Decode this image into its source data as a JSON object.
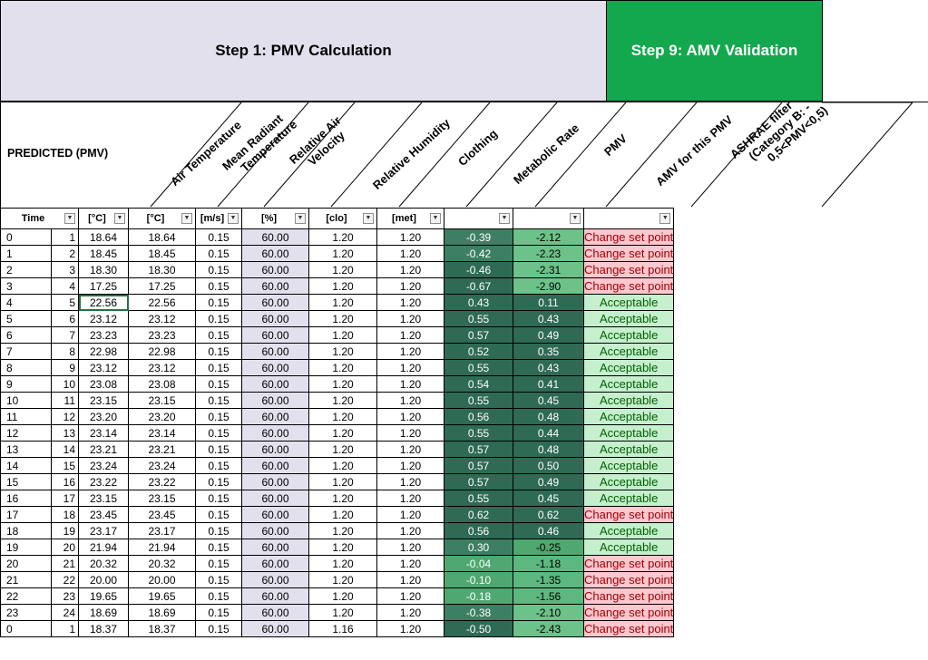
{
  "banners": {
    "step1": "Step 1: PMV Calculation",
    "step9": "Step 9: AMV Validation"
  },
  "header": {
    "predicted_label": "PREDICTED (PMV)",
    "columns": [
      {
        "key": "air_temp",
        "label": [
          "Air Temperature"
        ]
      },
      {
        "key": "mrt",
        "label": [
          "Mean Radiant",
          "Temperature"
        ]
      },
      {
        "key": "air_vel",
        "label": [
          "Relative Air",
          "Velocity"
        ]
      },
      {
        "key": "rh",
        "label": [
          "Relative Humidity"
        ]
      },
      {
        "key": "clo",
        "label": [
          "Clothing"
        ]
      },
      {
        "key": "met",
        "label": [
          "Metabolic Rate"
        ]
      },
      {
        "key": "pmv",
        "label": [
          "PMV"
        ]
      },
      {
        "key": "amv",
        "label": [
          "AMV for this PMV"
        ]
      },
      {
        "key": "ashrae",
        "label": [
          "ASHRAE filter",
          "(Category B: -",
          "0,5<PMV<0,5)"
        ]
      }
    ],
    "filters": {
      "time": "Time",
      "air_temp": "[°C]",
      "mrt": "[°C]",
      "air_vel": "[m/s]",
      "rh": "[%]",
      "clo": "[clo]",
      "met": "[met]",
      "pmv": "",
      "amv": "",
      "ashrae": ""
    },
    "filter_icon": "dropdown-arrow-icon"
  },
  "status_labels": {
    "good": "Acceptable",
    "bad": "Change set point"
  },
  "colors": {
    "banner1": "#e3e0ee",
    "banner2": "#14a84e",
    "acceptable_bg": "#c6efce",
    "acceptable_fg": "#006100",
    "change_bg": "#ffc7ce",
    "change_fg": "#9c0006"
  },
  "rows": [
    {
      "idx": "0",
      "hour": "1",
      "air_temp": "18.64",
      "mrt": "18.64",
      "vel": "0.15",
      "rh": "60.00",
      "clo": "1.20",
      "met": "1.20",
      "pmv": "-0.39",
      "amv": "-2.12",
      "status": "Change set point"
    },
    {
      "idx": "1",
      "hour": "2",
      "air_temp": "18.45",
      "mrt": "18.45",
      "vel": "0.15",
      "rh": "60.00",
      "clo": "1.20",
      "met": "1.20",
      "pmv": "-0.42",
      "amv": "-2.23",
      "status": "Change set point"
    },
    {
      "idx": "2",
      "hour": "3",
      "air_temp": "18.30",
      "mrt": "18.30",
      "vel": "0.15",
      "rh": "60.00",
      "clo": "1.20",
      "met": "1.20",
      "pmv": "-0.46",
      "amv": "-2.31",
      "status": "Change set point"
    },
    {
      "idx": "3",
      "hour": "4",
      "air_temp": "17.25",
      "mrt": "17.25",
      "vel": "0.15",
      "rh": "60.00",
      "clo": "1.20",
      "met": "1.20",
      "pmv": "-0.67",
      "amv": "-2.90",
      "status": "Change set point"
    },
    {
      "idx": "4",
      "hour": "5",
      "air_temp": "22.56",
      "mrt": "22.56",
      "vel": "0.15",
      "rh": "60.00",
      "clo": "1.20",
      "met": "1.20",
      "pmv": "0.43",
      "amv": "0.11",
      "status": "Acceptable"
    },
    {
      "idx": "5",
      "hour": "6",
      "air_temp": "23.12",
      "mrt": "23.12",
      "vel": "0.15",
      "rh": "60.00",
      "clo": "1.20",
      "met": "1.20",
      "pmv": "0.55",
      "amv": "0.43",
      "status": "Acceptable"
    },
    {
      "idx": "6",
      "hour": "7",
      "air_temp": "23.23",
      "mrt": "23.23",
      "vel": "0.15",
      "rh": "60.00",
      "clo": "1.20",
      "met": "1.20",
      "pmv": "0.57",
      "amv": "0.49",
      "status": "Acceptable"
    },
    {
      "idx": "7",
      "hour": "8",
      "air_temp": "22.98",
      "mrt": "22.98",
      "vel": "0.15",
      "rh": "60.00",
      "clo": "1.20",
      "met": "1.20",
      "pmv": "0.52",
      "amv": "0.35",
      "status": "Acceptable"
    },
    {
      "idx": "8",
      "hour": "9",
      "air_temp": "23.12",
      "mrt": "23.12",
      "vel": "0.15",
      "rh": "60.00",
      "clo": "1.20",
      "met": "1.20",
      "pmv": "0.55",
      "amv": "0.43",
      "status": "Acceptable"
    },
    {
      "idx": "9",
      "hour": "10",
      "air_temp": "23.08",
      "mrt": "23.08",
      "vel": "0.15",
      "rh": "60.00",
      "clo": "1.20",
      "met": "1.20",
      "pmv": "0.54",
      "amv": "0.41",
      "status": "Acceptable"
    },
    {
      "idx": "10",
      "hour": "11",
      "air_temp": "23.15",
      "mrt": "23.15",
      "vel": "0.15",
      "rh": "60.00",
      "clo": "1.20",
      "met": "1.20",
      "pmv": "0.55",
      "amv": "0.45",
      "status": "Acceptable"
    },
    {
      "idx": "11",
      "hour": "12",
      "air_temp": "23.20",
      "mrt": "23.20",
      "vel": "0.15",
      "rh": "60.00",
      "clo": "1.20",
      "met": "1.20",
      "pmv": "0.56",
      "amv": "0.48",
      "status": "Acceptable"
    },
    {
      "idx": "12",
      "hour": "13",
      "air_temp": "23.14",
      "mrt": "23.14",
      "vel": "0.15",
      "rh": "60.00",
      "clo": "1.20",
      "met": "1.20",
      "pmv": "0.55",
      "amv": "0.44",
      "status": "Acceptable"
    },
    {
      "idx": "13",
      "hour": "14",
      "air_temp": "23.21",
      "mrt": "23.21",
      "vel": "0.15",
      "rh": "60.00",
      "clo": "1.20",
      "met": "1.20",
      "pmv": "0.57",
      "amv": "0.48",
      "status": "Acceptable"
    },
    {
      "idx": "14",
      "hour": "15",
      "air_temp": "23.24",
      "mrt": "23.24",
      "vel": "0.15",
      "rh": "60.00",
      "clo": "1.20",
      "met": "1.20",
      "pmv": "0.57",
      "amv": "0.50",
      "status": "Acceptable"
    },
    {
      "idx": "15",
      "hour": "16",
      "air_temp": "23.22",
      "mrt": "23.22",
      "vel": "0.15",
      "rh": "60.00",
      "clo": "1.20",
      "met": "1.20",
      "pmv": "0.57",
      "amv": "0.49",
      "status": "Acceptable"
    },
    {
      "idx": "16",
      "hour": "17",
      "air_temp": "23.15",
      "mrt": "23.15",
      "vel": "0.15",
      "rh": "60.00",
      "clo": "1.20",
      "met": "1.20",
      "pmv": "0.55",
      "amv": "0.45",
      "status": "Acceptable"
    },
    {
      "idx": "17",
      "hour": "18",
      "air_temp": "23.45",
      "mrt": "23.45",
      "vel": "0.15",
      "rh": "60.00",
      "clo": "1.20",
      "met": "1.20",
      "pmv": "0.62",
      "amv": "0.62",
      "status": "Change set point"
    },
    {
      "idx": "18",
      "hour": "19",
      "air_temp": "23.17",
      "mrt": "23.17",
      "vel": "0.15",
      "rh": "60.00",
      "clo": "1.20",
      "met": "1.20",
      "pmv": "0.56",
      "amv": "0.46",
      "status": "Acceptable"
    },
    {
      "idx": "19",
      "hour": "20",
      "air_temp": "21.94",
      "mrt": "21.94",
      "vel": "0.15",
      "rh": "60.00",
      "clo": "1.20",
      "met": "1.20",
      "pmv": "0.30",
      "amv": "-0.25",
      "status": "Acceptable"
    },
    {
      "idx": "20",
      "hour": "21",
      "air_temp": "20.32",
      "mrt": "20.32",
      "vel": "0.15",
      "rh": "60.00",
      "clo": "1.20",
      "met": "1.20",
      "pmv": "-0.04",
      "amv": "-1.18",
      "status": "Change set point"
    },
    {
      "idx": "21",
      "hour": "22",
      "air_temp": "20.00",
      "mrt": "20.00",
      "vel": "0.15",
      "rh": "60.00",
      "clo": "1.20",
      "met": "1.20",
      "pmv": "-0.10",
      "amv": "-1.35",
      "status": "Change set point"
    },
    {
      "idx": "22",
      "hour": "23",
      "air_temp": "19.65",
      "mrt": "19.65",
      "vel": "0.15",
      "rh": "60.00",
      "clo": "1.20",
      "met": "1.20",
      "pmv": "-0.18",
      "amv": "-1.56",
      "status": "Change set point"
    },
    {
      "idx": "23",
      "hour": "24",
      "air_temp": "18.69",
      "mrt": "18.69",
      "vel": "0.15",
      "rh": "60.00",
      "clo": "1.20",
      "met": "1.20",
      "pmv": "-0.38",
      "amv": "-2.10",
      "status": "Change set point"
    },
    {
      "idx": "0",
      "hour": "1",
      "air_temp": "18.37",
      "mrt": "18.37",
      "vel": "0.15",
      "rh": "60.00",
      "clo": "1.16",
      "met": "1.20",
      "pmv": "-0.50",
      "amv": "-2.43",
      "status": "Change set point"
    }
  ]
}
